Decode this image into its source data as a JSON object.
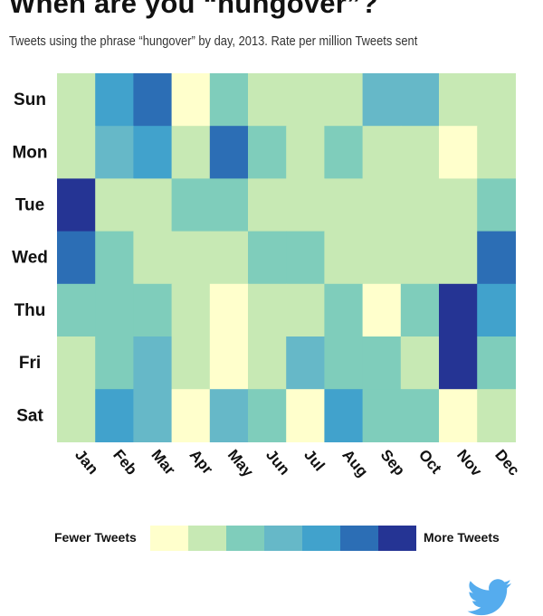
{
  "title": "When are you “hungover”?",
  "subtitle": "Tweets using the phrase “hungover” by day, 2013. Rate per million Tweets sent",
  "legend": {
    "low_label": "Fewer Tweets",
    "high_label": "More Tweets",
    "colors": [
      "#ffffcc",
      "#c7e9b4",
      "#7fcdbb",
      "#66b8c8",
      "#41a2cc",
      "#2c6eb5",
      "#253494"
    ]
  },
  "chart_data": {
    "type": "heatmap",
    "title": "When are you “hungover”?",
    "subtitle": "Tweets using the phrase “hungover” by day, 2013. Rate per million Tweets sent",
    "x_categories": [
      "Jan",
      "Feb",
      "Mar",
      "Apr",
      "May",
      "Jun",
      "Jul",
      "Aug",
      "Sep",
      "Oct",
      "Nov",
      "Dec"
    ],
    "y_categories": [
      "Sun",
      "Mon",
      "Tue",
      "Wed",
      "Thu",
      "Fri",
      "Sat"
    ],
    "value_scale": "ordinal 0 (fewer tweets) to 6 (more tweets)",
    "values": [
      [
        1,
        4,
        5,
        0,
        2,
        1,
        1,
        1,
        3,
        3,
        1,
        1
      ],
      [
        1,
        3,
        4,
        1,
        5,
        2,
        1,
        2,
        1,
        1,
        0,
        1
      ],
      [
        6,
        1,
        1,
        2,
        2,
        1,
        1,
        1,
        1,
        1,
        1,
        2
      ],
      [
        5,
        2,
        1,
        1,
        1,
        2,
        2,
        1,
        1,
        1,
        1,
        5
      ],
      [
        2,
        2,
        2,
        1,
        0,
        1,
        1,
        2,
        0,
        2,
        6,
        4
      ],
      [
        1,
        2,
        3,
        1,
        0,
        1,
        3,
        2,
        2,
        1,
        6,
        2
      ],
      [
        1,
        4,
        3,
        0,
        3,
        2,
        0,
        4,
        2,
        2,
        0,
        1
      ]
    ]
  }
}
